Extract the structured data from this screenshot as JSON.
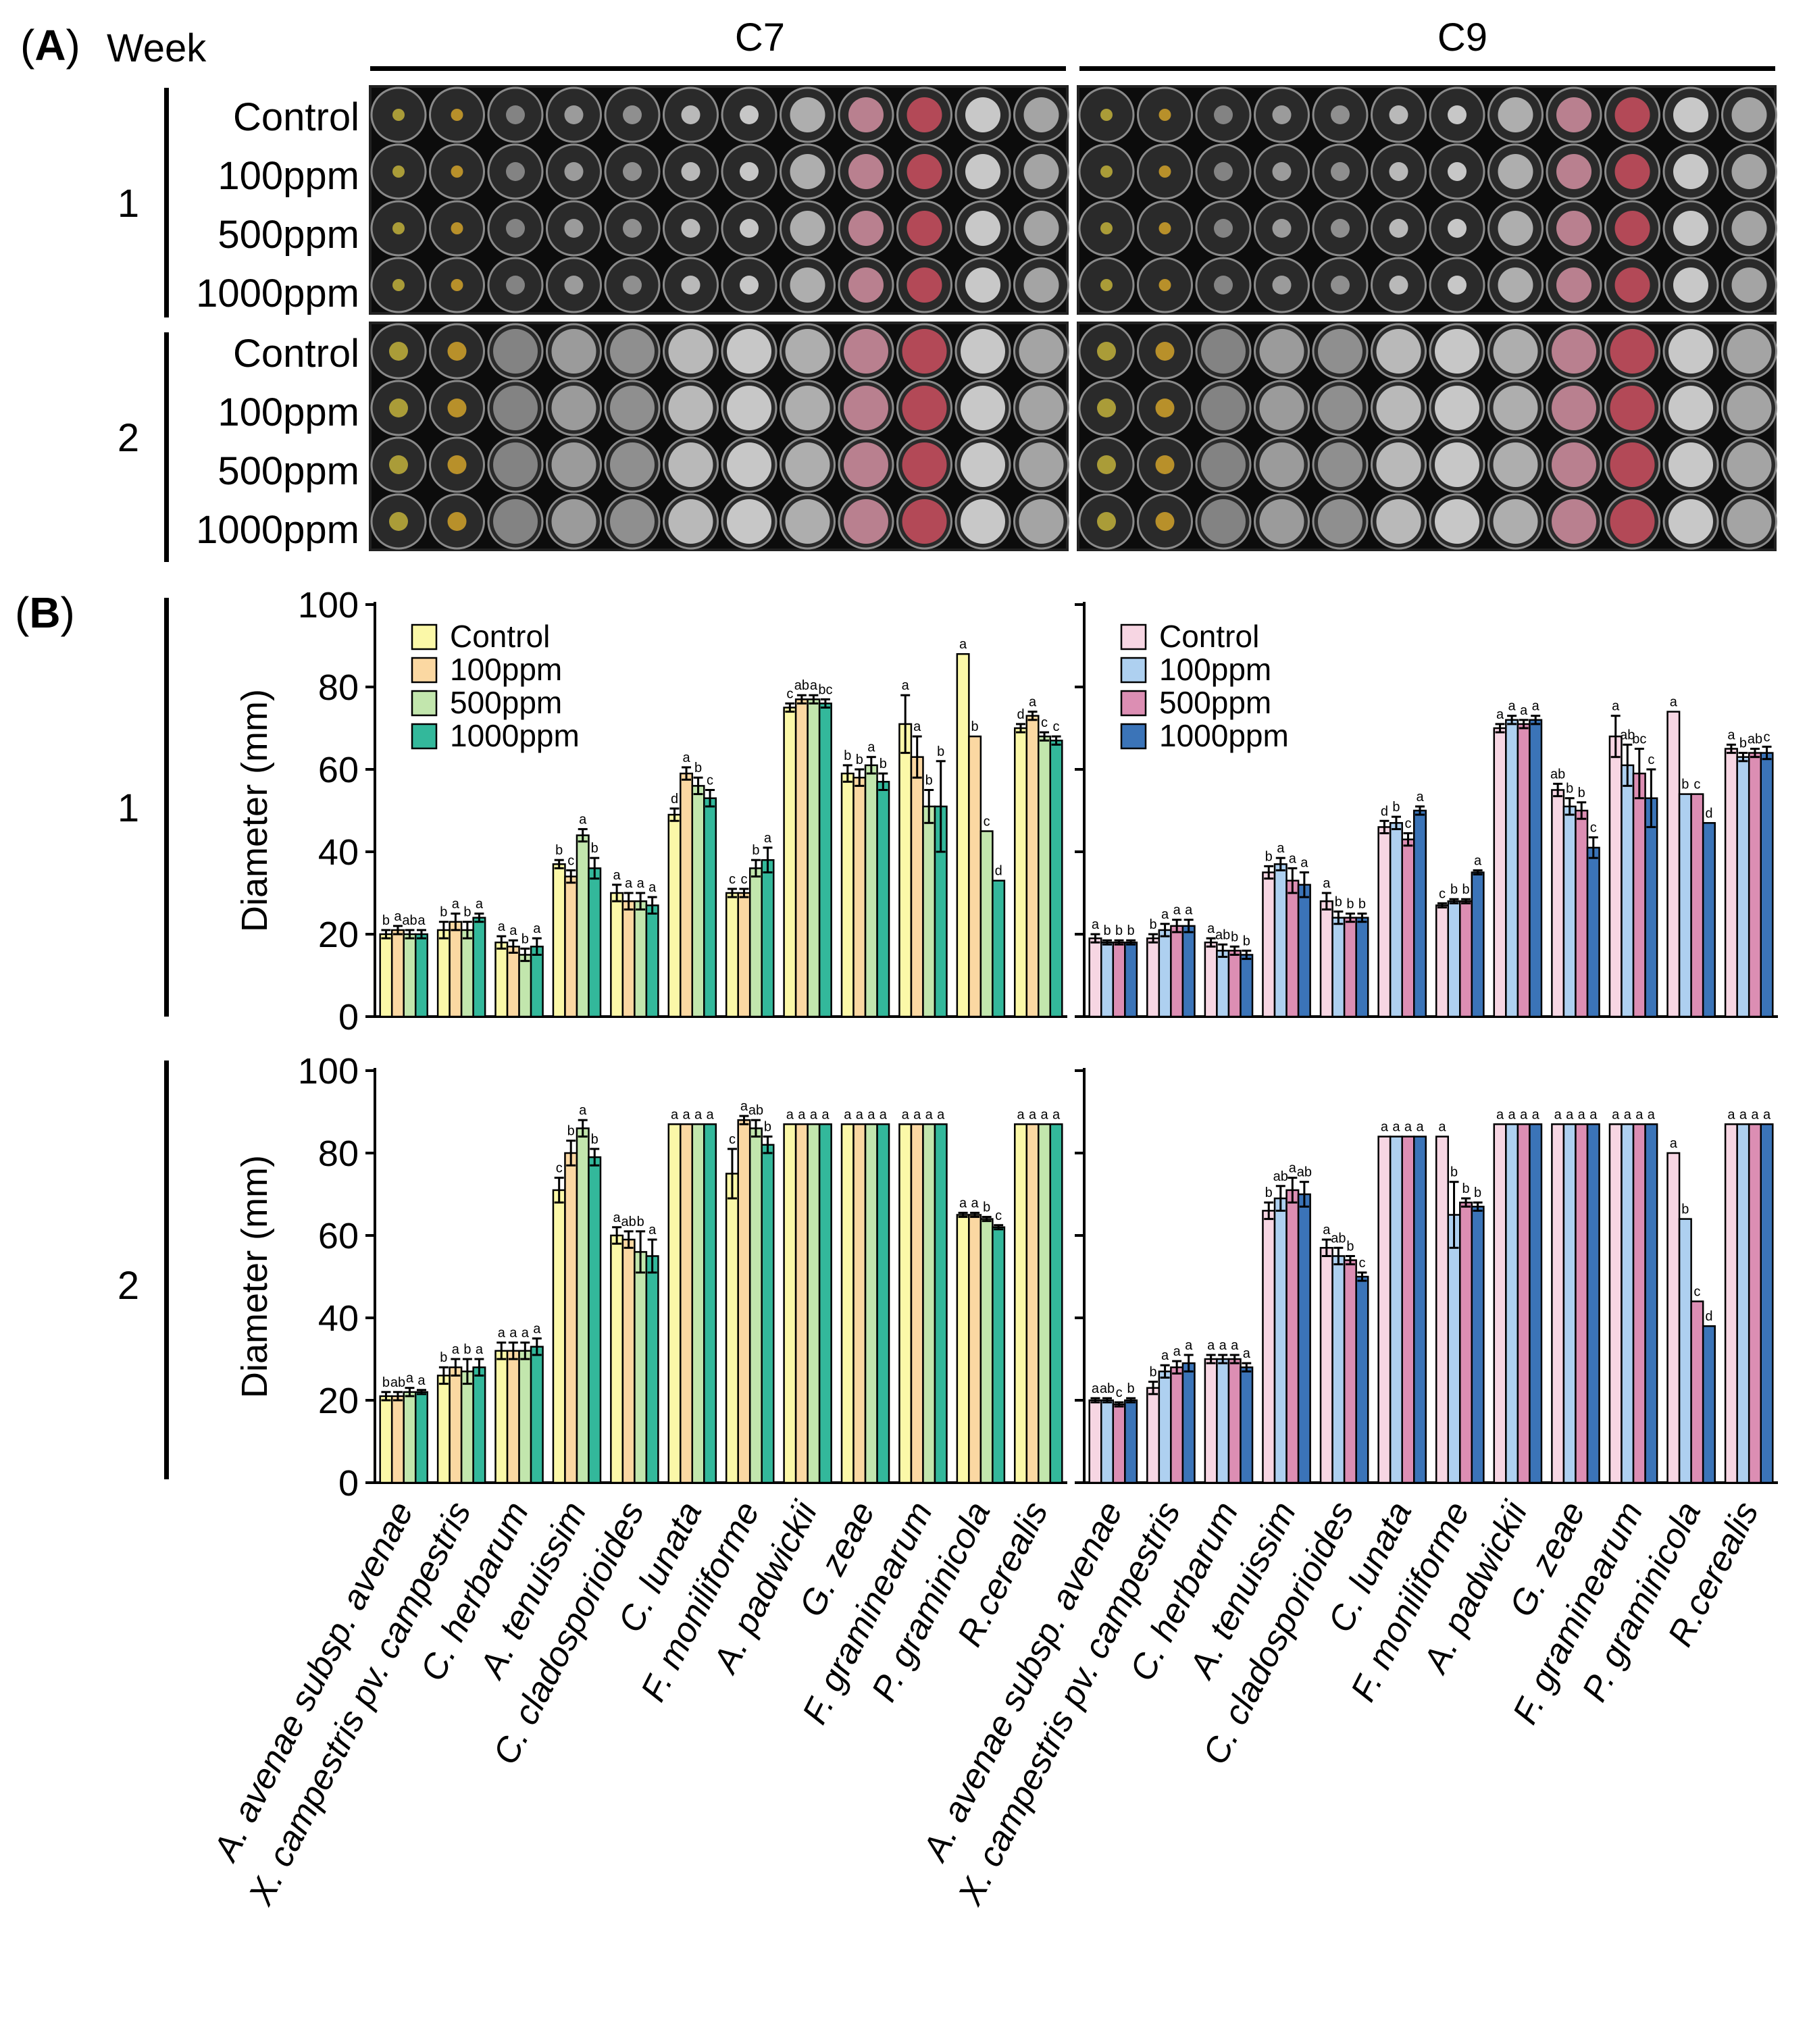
{
  "panelA": {
    "label_open": "(",
    "label_letter": "A",
    "label_close": ")",
    "week_title": "Week",
    "groups": [
      "C7",
      "C9"
    ],
    "weeks": [
      "1",
      "2"
    ],
    "rows": [
      "Control",
      "100ppm",
      "500ppm",
      "1000ppm"
    ]
  },
  "panelB": {
    "label_open": "(",
    "label_letter": "B",
    "label_close": ")",
    "weeks": [
      "1",
      "2"
    ],
    "ylabel": "Diameter (mm)",
    "yticks": [
      "0",
      "20",
      "40",
      "60",
      "80",
      "100"
    ]
  },
  "colors": {
    "C7": [
      "#fbf8a8",
      "#fbd8a2",
      "#c2e6ad",
      "#33b89b"
    ],
    "C9": [
      "#f7d6e3",
      "#aed0f0",
      "#dc8eb3",
      "#3b74b8"
    ]
  },
  "plate_tints": [
    "#b8a93a",
    "#c89b2a",
    "#8d8d8d",
    "#a7a7a7",
    "#9a9a9a",
    "#c9c9c9",
    "#d8d8d8",
    "#bdbdbd",
    "#c98a9a",
    "#c24d5c",
    "#d9d9d9",
    "#b1b1b1"
  ],
  "chart_data": [
    {
      "type": "bar",
      "title": "C7 Week 1",
      "ylabel": "Diameter (mm)",
      "ylim": [
        0,
        100
      ],
      "categories": [
        "A. avenae subsp. avenae",
        "X. campestris pv. campestris",
        "C. herbarum",
        "A. tenuissim",
        "C. cladosporioides",
        "C. lunata",
        "F. moniliforme",
        "A. padwickii",
        "G. zeae",
        "F. graminearum",
        "P. graminicola",
        "R.cerealis"
      ],
      "series": [
        {
          "name": "Control",
          "values": [
            20,
            21,
            18,
            37,
            30,
            49,
            30,
            75,
            59,
            71,
            88,
            70
          ],
          "errors": [
            1,
            2,
            1.5,
            1,
            2,
            1.5,
            1,
            1,
            2,
            7,
            0,
            1
          ]
        },
        {
          "name": "100ppm",
          "values": [
            21,
            23,
            17,
            34,
            28,
            59,
            30,
            77,
            58,
            63,
            68,
            73
          ],
          "errors": [
            1,
            2,
            1.5,
            1.5,
            2,
            1.5,
            1,
            1,
            2,
            5,
            0,
            1
          ]
        },
        {
          "name": "500ppm",
          "values": [
            20,
            21,
            15,
            44,
            28,
            56,
            36,
            77,
            61,
            51,
            45,
            68
          ],
          "errors": [
            1,
            2,
            1.5,
            1.5,
            2,
            2,
            2,
            1,
            2,
            4,
            0,
            1
          ]
        },
        {
          "name": "1000ppm",
          "values": [
            20,
            24,
            17,
            36,
            27,
            53,
            38,
            76,
            57,
            51,
            33,
            67
          ],
          "errors": [
            1,
            1,
            2,
            2.5,
            2,
            2,
            3,
            1,
            2,
            11,
            0,
            1
          ]
        }
      ],
      "letters": [
        [
          "b",
          "a",
          "ab",
          "a"
        ],
        [
          "b",
          "a",
          "b",
          "a"
        ],
        [
          "a",
          "a",
          "b",
          "a"
        ],
        [
          "b",
          "c",
          "a",
          "b"
        ],
        [
          "a",
          "a",
          "a",
          "a"
        ],
        [
          "d",
          "a",
          "b",
          "c"
        ],
        [
          "c",
          "c",
          "b",
          "a"
        ],
        [
          "c",
          "ab",
          "a",
          "bc"
        ],
        [
          "b",
          "b",
          "a",
          "b"
        ],
        [
          "a",
          "a",
          "b",
          "b"
        ],
        [
          "a",
          "b",
          "c",
          "d"
        ],
        [
          "d",
          "a",
          "c",
          "c"
        ]
      ],
      "legend": {
        "entries": [
          "Control",
          "100ppm",
          "500ppm",
          "1000ppm"
        ],
        "position": "top-left"
      }
    },
    {
      "type": "bar",
      "title": "C9 Week 1",
      "ylabel": "Diameter (mm)",
      "ylim": [
        0,
        100
      ],
      "categories": [
        "A. avenae subsp. avenae",
        "X. campestris pv. campestris",
        "C. herbarum",
        "A. tenuissim",
        "C. cladosporioides",
        "C. lunata",
        "F. moniliforme",
        "A. padwickii",
        "G. zeae",
        "F. graminearum",
        "P. graminicola",
        "R.cerealis"
      ],
      "series": [
        {
          "name": "Control",
          "values": [
            19,
            19,
            18,
            35,
            28,
            46,
            27,
            70,
            55,
            68,
            74,
            65
          ],
          "errors": [
            1,
            1,
            1,
            1.5,
            2,
            1.5,
            0.5,
            1,
            1.5,
            5,
            0,
            1
          ]
        },
        {
          "name": "100ppm",
          "values": [
            18,
            21,
            16,
            37,
            24,
            47,
            28,
            72,
            51,
            61,
            54,
            63
          ],
          "errors": [
            0.5,
            1.5,
            1.5,
            1.5,
            1.5,
            1.5,
            0.5,
            1,
            2,
            5,
            0,
            1
          ]
        },
        {
          "name": "500ppm",
          "values": [
            18,
            22,
            16,
            33,
            24,
            43,
            28,
            71,
            50,
            59,
            54,
            64
          ],
          "errors": [
            0.5,
            1.5,
            1,
            3,
            1,
            1.5,
            0.5,
            1,
            2,
            6,
            0,
            1
          ]
        },
        {
          "name": "1000ppm",
          "values": [
            18,
            22,
            15,
            32,
            24,
            50,
            35,
            72,
            41,
            53,
            47,
            64
          ],
          "errors": [
            0.5,
            1.5,
            1,
            3,
            1,
            1,
            0.5,
            1,
            2.5,
            7,
            0,
            1.5
          ]
        }
      ],
      "letters": [
        [
          "a",
          "b",
          "b",
          "b"
        ],
        [
          "b",
          "a",
          "a",
          "a"
        ],
        [
          "a",
          "ab",
          "b",
          "b"
        ],
        [
          "b",
          "a",
          "a",
          "a"
        ],
        [
          "a",
          "b",
          "b",
          "b"
        ],
        [
          "d",
          "b",
          "c",
          "a"
        ],
        [
          "c",
          "b",
          "b",
          "a"
        ],
        [
          "a",
          "a",
          "a",
          "a"
        ],
        [
          "ab",
          "b",
          "b",
          "c"
        ],
        [
          "a",
          "ab",
          "bc",
          "c"
        ],
        [
          "a",
          "b",
          "c",
          "d"
        ],
        [
          "a",
          "b",
          "ab",
          "c"
        ]
      ],
      "legend": {
        "entries": [
          "Control",
          "100ppm",
          "500ppm",
          "1000ppm"
        ],
        "position": "top-left"
      }
    },
    {
      "type": "bar",
      "title": "C7 Week 2",
      "ylabel": "Diameter (mm)",
      "ylim": [
        0,
        100
      ],
      "categories": [
        "A. avenae subsp. avenae",
        "X. campestris pv. campestris",
        "C. herbarum",
        "A. tenuissim",
        "C. cladosporioides",
        "C. lunata",
        "F. moniliforme",
        "A. padwickii",
        "G. zeae",
        "F. graminearum",
        "P. graminicola",
        "R.cerealis"
      ],
      "series": [
        {
          "name": "Control",
          "values": [
            21,
            26,
            32,
            71,
            60,
            87,
            75,
            87,
            87,
            87,
            65,
            87
          ],
          "errors": [
            1,
            2,
            2,
            3,
            2,
            0,
            6,
            0,
            0,
            0,
            0.5,
            0
          ]
        },
        {
          "name": "100ppm",
          "values": [
            21,
            28,
            32,
            80,
            59,
            87,
            88,
            87,
            87,
            87,
            65,
            87
          ],
          "errors": [
            1,
            2,
            2,
            3,
            2,
            0,
            1,
            0,
            0,
            0,
            0.5,
            0
          ]
        },
        {
          "name": "500ppm",
          "values": [
            22,
            27,
            32,
            86,
            56,
            87,
            86,
            87,
            87,
            87,
            64,
            87
          ],
          "errors": [
            1,
            3,
            2,
            2,
            5,
            0,
            2,
            0,
            0,
            0,
            0.5,
            0
          ]
        },
        {
          "name": "1000ppm",
          "values": [
            22,
            28,
            33,
            79,
            55,
            87,
            82,
            87,
            87,
            87,
            62,
            87
          ],
          "errors": [
            0.5,
            2,
            2,
            2,
            4,
            0,
            2,
            0,
            0,
            0,
            0.5,
            0
          ]
        }
      ],
      "letters": [
        [
          "b",
          "ab",
          "a",
          "a"
        ],
        [
          "b",
          "a",
          "b",
          "a"
        ],
        [
          "a",
          "a",
          "a",
          "a"
        ],
        [
          "c",
          "b",
          "a",
          "b"
        ],
        [
          "a",
          "ab",
          "b",
          "a"
        ],
        [
          "a",
          "a",
          "a",
          "a"
        ],
        [
          "c",
          "a",
          "ab",
          "b"
        ],
        [
          "a",
          "a",
          "a",
          "a"
        ],
        [
          "a",
          "a",
          "a",
          "a"
        ],
        [
          "a",
          "a",
          "a",
          "a"
        ],
        [
          "a",
          "a",
          "b",
          "c"
        ],
        [
          "a",
          "a",
          "a",
          "a"
        ]
      ]
    },
    {
      "type": "bar",
      "title": "C9 Week 2",
      "ylabel": "Diameter (mm)",
      "ylim": [
        0,
        100
      ],
      "categories": [
        "A. avenae subsp. avenae",
        "X. campestris pv. campestris",
        "C. herbarum",
        "A. tenuissim",
        "C. cladosporioides",
        "C. lunata",
        "F. moniliforme",
        "A. padwickii",
        "G. zeae",
        "F. graminearum",
        "P. graminicola",
        "R.cerealis"
      ],
      "series": [
        {
          "name": "Control",
          "values": [
            20,
            23,
            30,
            66,
            57,
            84,
            84,
            87,
            87,
            87,
            80,
            87
          ],
          "errors": [
            0.5,
            1.5,
            1,
            2,
            2,
            0,
            0,
            0,
            0,
            0,
            0,
            0
          ]
        },
        {
          "name": "100ppm",
          "values": [
            20,
            27,
            30,
            69,
            55,
            84,
            65,
            87,
            87,
            87,
            64,
            87
          ],
          "errors": [
            0.5,
            1.5,
            1,
            3,
            2,
            0,
            8,
            0,
            0,
            0,
            0,
            0
          ]
        },
        {
          "name": "500ppm",
          "values": [
            19,
            28,
            30,
            71,
            54,
            84,
            68,
            87,
            87,
            87,
            44,
            87
          ],
          "errors": [
            0.5,
            1.5,
            1,
            3,
            1,
            0,
            1,
            0,
            0,
            0,
            0,
            0
          ]
        },
        {
          "name": "1000ppm",
          "values": [
            20,
            29,
            28,
            70,
            50,
            84,
            67,
            87,
            87,
            87,
            38,
            87
          ],
          "errors": [
            0.5,
            2,
            1,
            3,
            1,
            0,
            1,
            0,
            0,
            0,
            0,
            0
          ]
        }
      ],
      "letters": [
        [
          "a",
          "ab",
          "c",
          "b"
        ],
        [
          "b",
          "a",
          "a",
          "a"
        ],
        [
          "a",
          "a",
          "a",
          "a"
        ],
        [
          "b",
          "ab",
          "a",
          "ab"
        ],
        [
          "a",
          "ab",
          "b",
          "c"
        ],
        [
          "a",
          "a",
          "a",
          "a"
        ],
        [
          "a",
          "b",
          "b",
          "b"
        ],
        [
          "a",
          "a",
          "a",
          "a"
        ],
        [
          "a",
          "a",
          "a",
          "a"
        ],
        [
          "a",
          "a",
          "a",
          "a"
        ],
        [
          "a",
          "b",
          "c",
          "d"
        ],
        [
          "a",
          "a",
          "a",
          "a"
        ]
      ]
    }
  ]
}
